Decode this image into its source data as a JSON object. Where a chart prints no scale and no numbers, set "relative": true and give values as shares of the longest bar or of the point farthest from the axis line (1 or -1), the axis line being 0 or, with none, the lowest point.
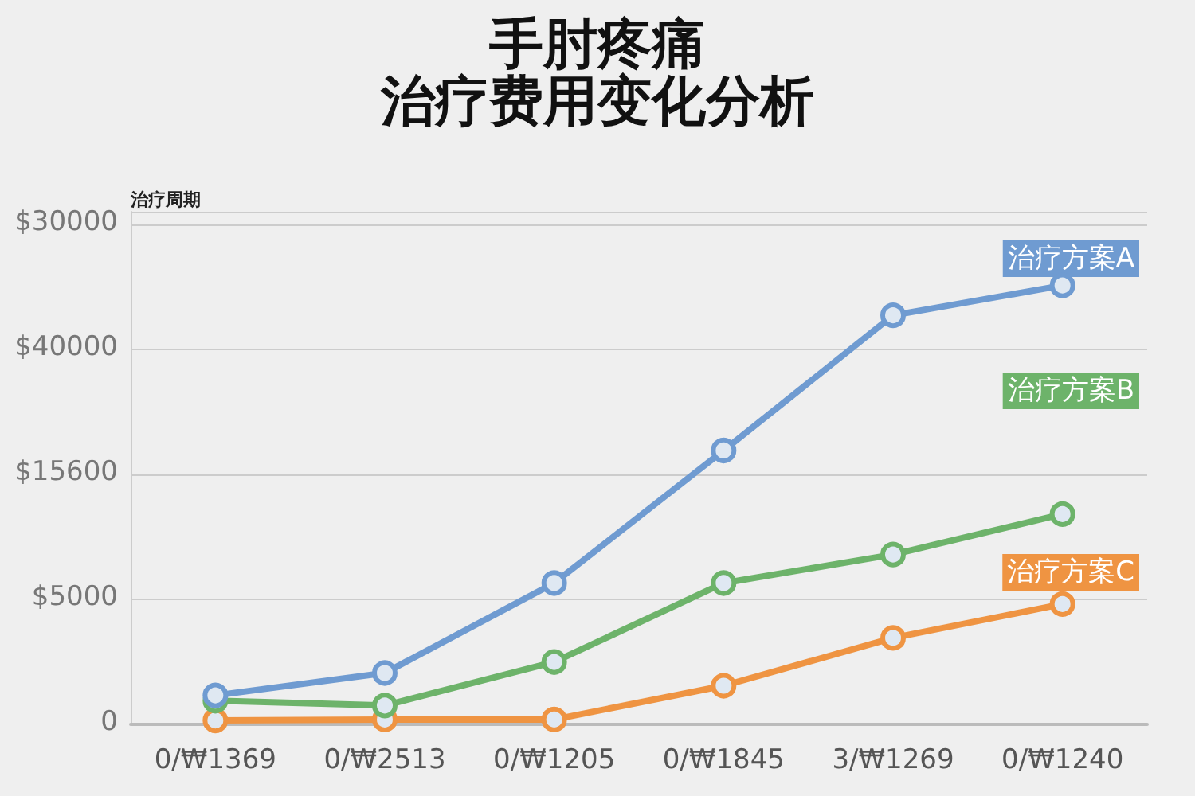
{
  "chart_data": {
    "type": "line",
    "title": "手肘疼痛",
    "subtitle": "治疗费用变化分析",
    "categories": [
      "0/₩1369",
      "0/₩2513",
      "0/₩1205",
      "0/₩1845",
      "3/₩1269",
      "0/₩1240"
    ],
    "series": [
      {
        "name": "治疗方案A",
        "color": "#6f9bd1",
        "values": [
          0.066,
          0.117,
          0.322,
          0.624,
          0.932,
          1
        ]
      },
      {
        "name": "治疗方案B",
        "color": "#6db36a",
        "values": [
          0.054,
          0.043,
          0.142,
          0.322,
          0.387,
          0.479
        ]
      },
      {
        "name": "治疗方案C",
        "color": "#ef9442",
        "values": [
          0.009,
          0.011,
          0.011,
          0.088,
          0.197,
          0.274
        ]
      }
    ],
    "relative": true,
    "annotations": [
      "0",
      "$5000",
      "$15600",
      "$40000",
      "$30000",
      "治疗周期"
    ],
    "grid": "y",
    "legend": "top right",
    "marker": "circle",
    "line_style": "solid"
  }
}
